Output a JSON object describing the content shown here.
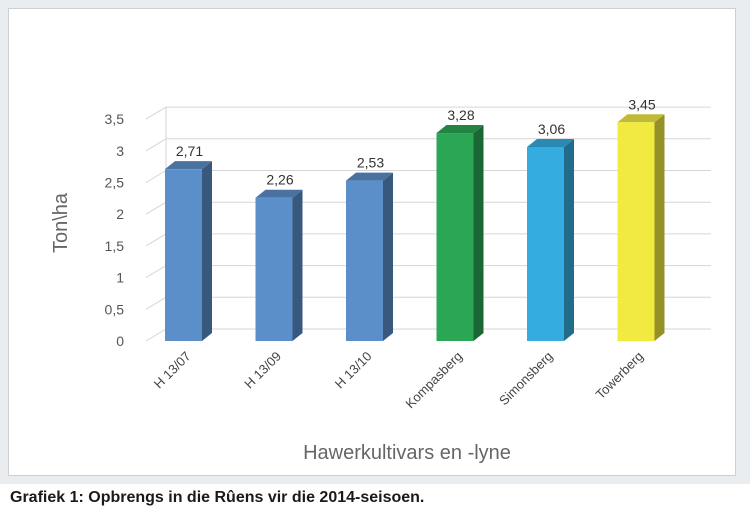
{
  "caption": "Grafiek 1: Opbrengs in die Rûens vir die 2014-seisoen.",
  "chart_data": {
    "type": "bar",
    "categories": [
      "H 13/07",
      "H 13/09",
      "H 13/10",
      "Kompasberg",
      "Simonsberg",
      "Towerberg"
    ],
    "values": [
      2.71,
      2.26,
      2.53,
      3.28,
      3.06,
      3.45
    ],
    "value_labels": [
      "2,71",
      "2,26",
      "2,53",
      "3,28",
      "3,06",
      "3,45"
    ],
    "colors": [
      "#5b8fc9",
      "#5b8fc9",
      "#5b8fc9",
      "#2aa655",
      "#35ace0",
      "#f0ea41"
    ],
    "xlabel": "Hawerkultivars en -lyne",
    "ylabel": "Ton\\ha",
    "ylim": [
      0,
      3.5
    ],
    "yticks": [
      "0",
      "0,5",
      "1",
      "1,5",
      "2",
      "2,5",
      "3",
      "3,5"
    ],
    "grid": true,
    "three_d": true
  }
}
